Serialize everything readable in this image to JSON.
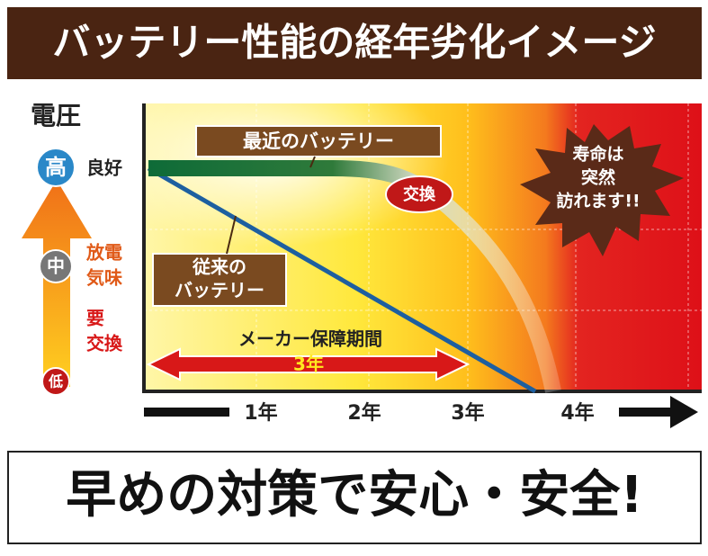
{
  "header": {
    "title": "バッテリー性能の経年劣化イメージ"
  },
  "voltage": {
    "title": "電圧",
    "high": {
      "badge": "高",
      "label": "良好"
    },
    "mid": {
      "badge": "中",
      "label": [
        "放電",
        "気味"
      ]
    },
    "low": {
      "badge": "低",
      "label": [
        "要",
        "交換"
      ]
    }
  },
  "years": [
    "1年",
    "2年",
    "3年",
    "4年"
  ],
  "callouts": {
    "new_battery": "最近のバッテリー",
    "old_battery": [
      "従来の",
      "バッテリー"
    ],
    "exchange": "交換",
    "lifespan": [
      "寿命は",
      "突然",
      "訪れます!!"
    ]
  },
  "warranty": {
    "label": "メーカー保障期間",
    "period": "3年"
  },
  "footer": {
    "slogan": "早めの対策で安心・安全!"
  }
}
